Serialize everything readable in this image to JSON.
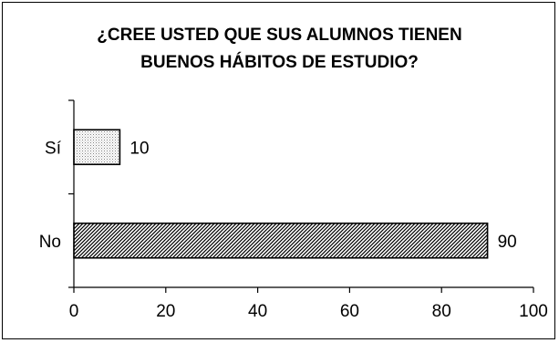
{
  "chart_data": {
    "type": "bar",
    "orientation": "horizontal",
    "title_lines": [
      "¿CREE USTED QUE SUS ALUMNOS TIENEN",
      "BUENOS HÁBITOS DE ESTUDIO?"
    ],
    "categories": [
      "Sí",
      "No"
    ],
    "values": [
      10,
      90
    ],
    "data_labels": [
      "10",
      "90"
    ],
    "xlabel": "",
    "ylabel": "",
    "xlim": [
      0,
      100
    ],
    "x_ticks": [
      0,
      20,
      40,
      60,
      80,
      100
    ],
    "grid": false,
    "legend": "none",
    "bar_patterns": [
      "dotted-fine",
      "diagonal-hatch"
    ],
    "colors": {
      "bar_edge": "#000000",
      "pattern_ink": "#000000",
      "background": "#ffffff"
    }
  }
}
